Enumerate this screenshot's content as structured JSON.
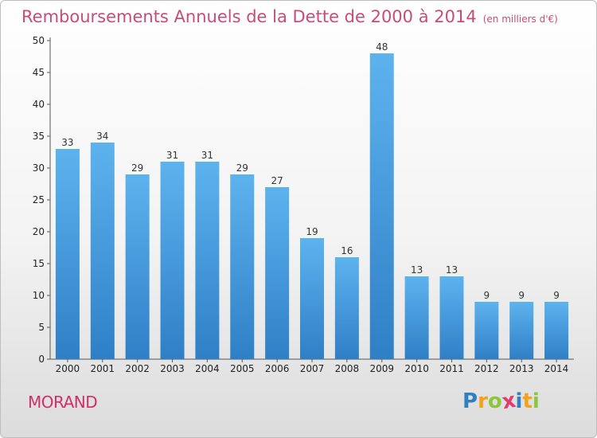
{
  "chart_data": {
    "type": "bar",
    "title": "Remboursements Annuels de la Dette de 2000 à 2014",
    "unit": "(en milliers d'€)",
    "categories": [
      "2000",
      "2001",
      "2002",
      "2003",
      "2004",
      "2005",
      "2006",
      "2007",
      "2008",
      "2009",
      "2010",
      "2011",
      "2012",
      "2013",
      "2014"
    ],
    "values": [
      33,
      34,
      29,
      31,
      31,
      29,
      27,
      19,
      16,
      48,
      13,
      13,
      9,
      9,
      9
    ],
    "ylim": [
      0,
      50
    ],
    "yticks": [
      0,
      5,
      10,
      15,
      20,
      25,
      30,
      35,
      40,
      45,
      50
    ],
    "grid": false,
    "bar_color": "#3d95dd",
    "title_color": "#c84c7a"
  },
  "commune": "MORAND",
  "brand": {
    "letters": [
      "P",
      "r",
      "o",
      "x",
      "i",
      "t",
      "i"
    ],
    "colors": [
      "#2f7fc1",
      "#f3a21c",
      "#8cc63f",
      "#e23b6d",
      "#2f7fc1",
      "#f3a21c",
      "#8cc63f"
    ]
  }
}
